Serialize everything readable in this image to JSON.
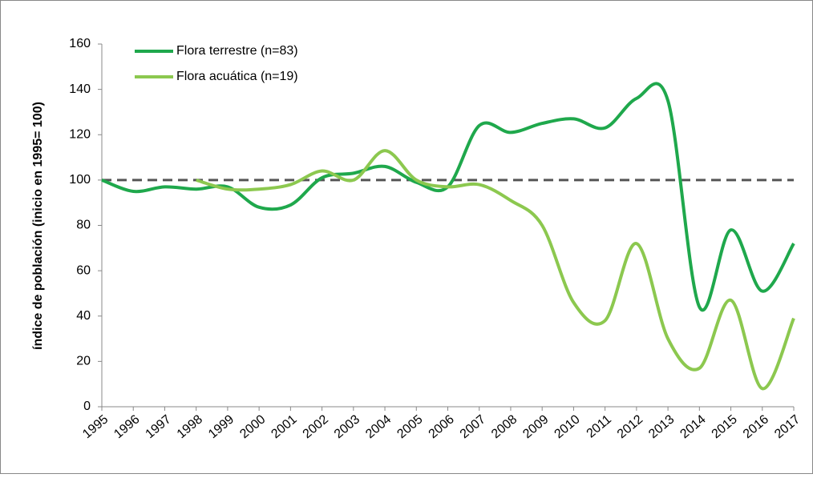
{
  "chart_data": {
    "type": "line",
    "y_label": "índice de población  (inicio en 1995= 100)",
    "categories": [
      "1995",
      "1996",
      "1997",
      "1998",
      "1999",
      "2000",
      "2001",
      "2002",
      "2003",
      "2004",
      "2005",
      "2006",
      "2007",
      "2008",
      "2009",
      "2010",
      "2011",
      "2012",
      "2013",
      "2014",
      "2015",
      "2016",
      "2017"
    ],
    "series": [
      {
        "name": "Flora terrestre (n=83)",
        "color": "#1fa84c",
        "values": [
          100,
          95,
          97,
          96,
          97,
          88,
          89,
          101,
          103,
          106,
          99,
          97,
          124,
          121,
          125,
          127,
          123,
          136,
          135,
          44,
          78,
          51,
          72
        ]
      },
      {
        "name": "Flora acuática (n=19)",
        "color": "#8cc84f",
        "values": [
          null,
          null,
          null,
          100,
          96,
          96,
          98,
          104,
          100,
          113,
          100,
          97,
          98,
          91,
          80,
          46,
          38,
          72,
          30,
          17,
          47,
          8,
          39
        ]
      }
    ],
    "reference_line": 100,
    "ylim": [
      0,
      160
    ],
    "yticks": [
      0,
      20,
      40,
      60,
      80,
      100,
      120,
      140,
      160
    ],
    "legend": "upper-left"
  }
}
